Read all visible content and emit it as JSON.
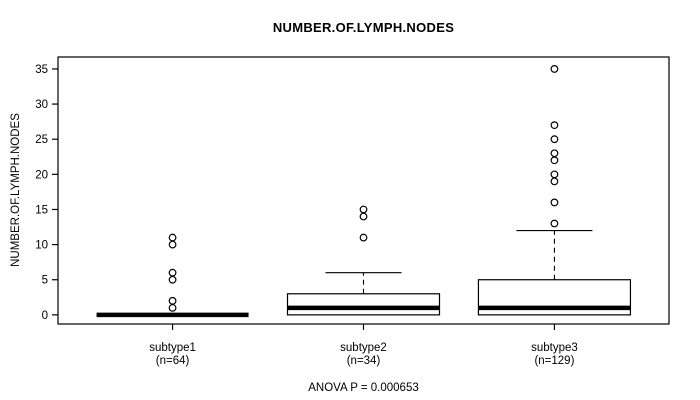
{
  "title": "NUMBER.OF.LYMPH.NODES",
  "ylabel": "NUMBER.OF.LYMPH.NODES",
  "footer": "ANOVA P = 0.000653",
  "chart_data": {
    "type": "boxplot",
    "title": "NUMBER.OF.LYMPH.NODES",
    "ylabel": "NUMBER.OF.LYMPH.NODES",
    "annotation": "ANOVA P = 0.000653",
    "yticks": [
      0,
      5,
      10,
      15,
      20,
      25,
      30,
      35
    ],
    "ylim": [
      -1.3,
      36.7
    ],
    "grid": false,
    "legend": "none",
    "groups": [
      {
        "label": "subtype1",
        "sublabel": "(n=64)",
        "n": 64,
        "q1": 0,
        "median": 0,
        "q3": 0,
        "whisker_low": 0,
        "whisker_high": 0,
        "outliers": [
          1,
          2,
          5,
          6,
          10,
          11
        ]
      },
      {
        "label": "subtype2",
        "sublabel": "(n=34)",
        "n": 34,
        "q1": 0,
        "median": 1,
        "q3": 3,
        "whisker_low": 0,
        "whisker_high": 6,
        "outliers": [
          11,
          14,
          15
        ]
      },
      {
        "label": "subtype3",
        "sublabel": "(n=129)",
        "n": 129,
        "q1": 0,
        "median": 1,
        "q3": 5,
        "whisker_low": 0,
        "whisker_high": 12,
        "outliers": [
          13,
          16,
          19,
          20,
          22,
          23,
          25,
          27,
          35
        ]
      }
    ],
    "colors": {
      "foreground": "#000000",
      "background": "#ffffff"
    }
  }
}
